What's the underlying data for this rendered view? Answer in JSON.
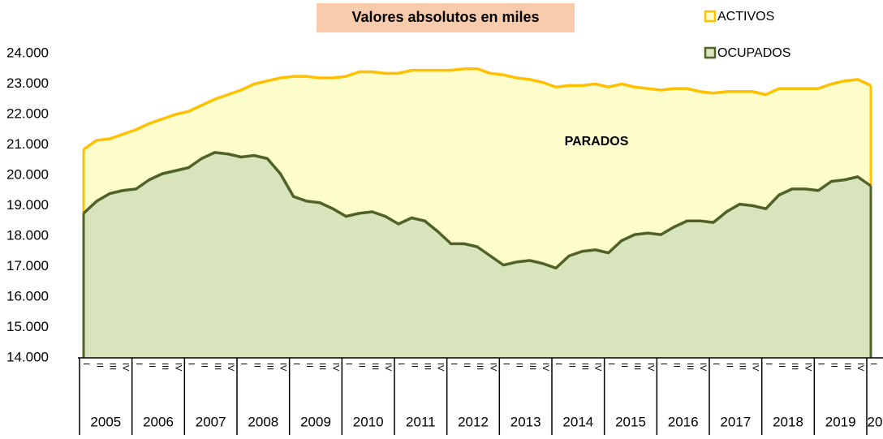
{
  "chart_data": {
    "type": "area",
    "title": "Valores absolutos en  miles",
    "annotation": "PARADOS",
    "years": [
      "2005",
      "2006",
      "2007",
      "2008",
      "2009",
      "2010",
      "2011",
      "2012",
      "2013",
      "2014",
      "2015",
      "2016",
      "2017",
      "2018",
      "2019",
      "20"
    ],
    "quarters": [
      "I",
      "II",
      "III",
      "IV"
    ],
    "ylim": [
      14000,
      24000
    ],
    "yticks": [
      {
        "value": 14000,
        "label": "14.000"
      },
      {
        "value": 15000,
        "label": "15.000"
      },
      {
        "value": 16000,
        "label": "16.000"
      },
      {
        "value": 17000,
        "label": "17.000"
      },
      {
        "value": 18000,
        "label": "18.000"
      },
      {
        "value": 19000,
        "label": "19.000"
      },
      {
        "value": 20000,
        "label": "20.000"
      },
      {
        "value": 21000,
        "label": "21.000"
      },
      {
        "value": 22000,
        "label": "22.000"
      },
      {
        "value": 23000,
        "label": "23.000"
      },
      {
        "value": 24000,
        "label": "24.000"
      }
    ],
    "series": [
      {
        "name": "ACTIVOS",
        "color": "#ffc000",
        "fill": "#fdfccb",
        "values": [
          20850,
          21150,
          21200,
          21350,
          21500,
          21700,
          21850,
          22000,
          22100,
          22300,
          22500,
          22650,
          22800,
          23000,
          23100,
          23200,
          23250,
          23250,
          23200,
          23200,
          23250,
          23400,
          23400,
          23350,
          23350,
          23450,
          23450,
          23450,
          23450,
          23500,
          23500,
          23350,
          23300,
          23200,
          23150,
          23050,
          22900,
          22950,
          22950,
          23000,
          22900,
          23000,
          22900,
          22850,
          22800,
          22850,
          22850,
          22750,
          22700,
          22750,
          22750,
          22750,
          22650,
          22850,
          22850,
          22850,
          22850,
          23000,
          23100,
          23150,
          22950
        ]
      },
      {
        "name": "OCUPADOS",
        "color": "#4f6228",
        "fill": "#d8e4bc",
        "values": [
          18750,
          19150,
          19400,
          19500,
          19550,
          19850,
          20050,
          20150,
          20250,
          20550,
          20750,
          20700,
          20600,
          20650,
          20550,
          20050,
          19300,
          19150,
          19100,
          18900,
          18650,
          18750,
          18800,
          18650,
          18400,
          18600,
          18500,
          18150,
          17750,
          17750,
          17650,
          17350,
          17050,
          17150,
          17200,
          17100,
          16950,
          17350,
          17500,
          17550,
          17450,
          17850,
          18050,
          18100,
          18050,
          18300,
          18500,
          18500,
          18450,
          18800,
          19050,
          19000,
          18900,
          19350,
          19550,
          19550,
          19500,
          19800,
          19850,
          19950,
          19650
        ]
      }
    ]
  }
}
